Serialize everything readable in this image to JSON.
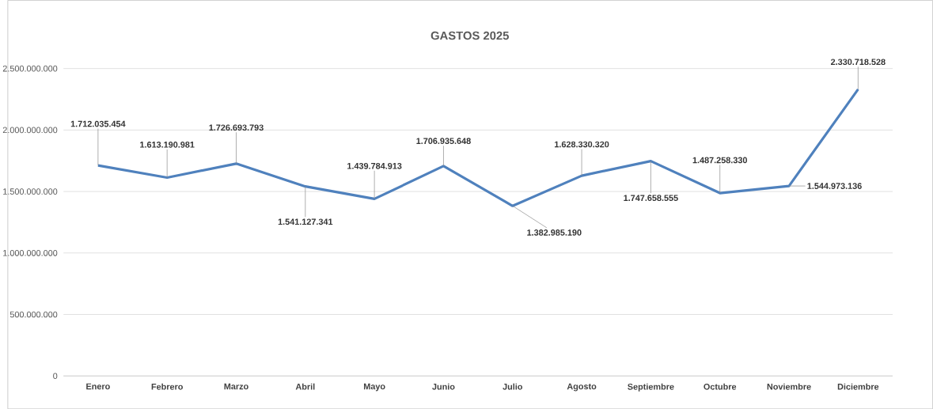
{
  "chart_data": {
    "type": "line",
    "title": "GASTOS 2025",
    "categories": [
      "Enero",
      "Febrero",
      "Marzo",
      "Abril",
      "Mayo",
      "Junio",
      "Julio",
      "Agosto",
      "Septiembre",
      "Octubre",
      "Noviembre",
      "Diciembre"
    ],
    "values": [
      1712035454,
      1613190981,
      1726693793,
      1541127341,
      1439784913,
      1706935648,
      1382985190,
      1628330320,
      1747658555,
      1487258330,
      1544973136,
      2330718528
    ],
    "value_labels": [
      "1.712.035.454",
      "1.613.190.981",
      "1.726.693.793",
      "1.541.127.341",
      "1.439.784.913",
      "1.706.935.648",
      "1.382.985.190",
      "1.628.330.320",
      "1.747.658.555",
      "1.487.258.330",
      "1.544.973.136",
      "2.330.718.528"
    ],
    "color": "#4f81bd",
    "ylim": [
      0,
      2500000000
    ],
    "yticks": [
      0,
      {
        "value": 500000000,
        "label": "500.000.000"
      },
      {
        "value": 1000000000,
        "label": "1.000.000.000"
      },
      {
        "value": 1500000000,
        "label": "1.500.000.000"
      },
      {
        "value": 2000000000,
        "label": "2.000.000.000"
      },
      {
        "value": 2500000000,
        "label": "2.500.000.000"
      }
    ],
    "grid": "y"
  }
}
